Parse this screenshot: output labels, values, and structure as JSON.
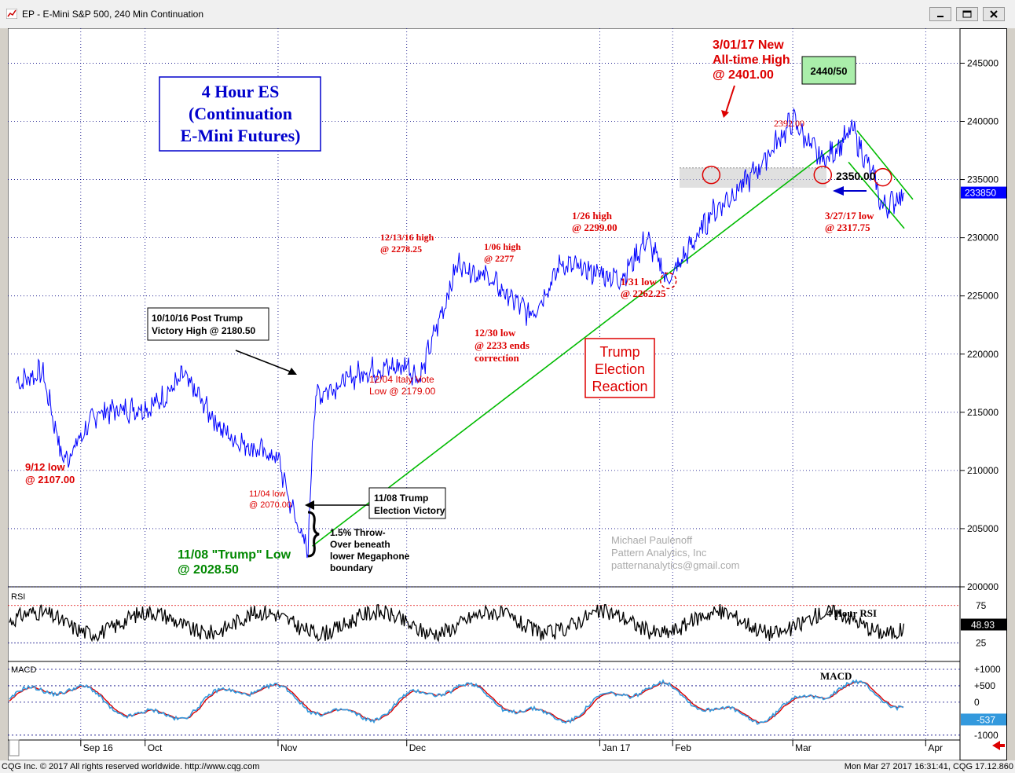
{
  "window": {
    "title": "EP - E-Mini S&P 500, 240 Min Continuation",
    "buttons": [
      "minimize",
      "restore",
      "close"
    ]
  },
  "footer": {
    "left": "CQG Inc. © 2017 All rights reserved worldwide. http://www.cqg.com",
    "right": "Mon Mar 27 2017 16:31:41, CQG 17.12.860"
  },
  "colors": {
    "price": "#0000ff",
    "annotation_red": "#dd0000",
    "trend_green": "#00bb00",
    "rsi_line": "#000000",
    "macd_blue": "#3399dd",
    "macd_red": "#dd0000",
    "grid": "#000080"
  },
  "chart_data": [
    {
      "type": "line",
      "panel": "price",
      "ylim": [
        200000,
        248000
      ],
      "y_ticks": [
        200000,
        205000,
        210000,
        215000,
        220000,
        225000,
        230000,
        235000,
        240000,
        245000
      ],
      "current_value_label": "233850",
      "x_ticks": [
        "Sep 16",
        "Oct",
        "Nov",
        "Dec",
        "Jan 17",
        "Feb",
        "Mar",
        "Apr"
      ],
      "series": [
        {
          "x": [
            "2016-09-01",
            "2016-09-07",
            "2016-09-12",
            "2016-09-20",
            "2016-10-03",
            "2016-10-10",
            "2016-10-20",
            "2016-11-01",
            "2016-11-04",
            "2016-11-08",
            "2016-11-09",
            "2016-11-10",
            "2016-11-21",
            "2016-12-01",
            "2016-12-04",
            "2016-12-13",
            "2016-12-20",
            "2016-12-30",
            "2017-01-06",
            "2017-01-20",
            "2017-01-26",
            "2017-01-31",
            "2017-02-10",
            "2017-02-20",
            "2017-03-01",
            "2017-03-08",
            "2017-03-15",
            "2017-03-20",
            "2017-03-22",
            "2017-03-27"
          ],
          "values": [
            217500,
            218500,
            210700,
            215000,
            215500,
            218050,
            213000,
            211000,
            207000,
            202850,
            212500,
            216500,
            218500,
            219000,
            217900,
            227825,
            226500,
            223300,
            227700,
            226500,
            229900,
            226225,
            232000,
            235500,
            240100,
            236500,
            239200,
            235000,
            232500,
            233850
          ]
        }
      ],
      "levels": [
        {
          "label": "2350.00",
          "value": 235000
        }
      ],
      "annotations": {
        "title_box": [
          "4 Hour ES",
          "(Continuation",
          "E-Mini Futures)"
        ],
        "target_box": "2440/50",
        "ath": [
          "3/01/17 New",
          "All-time High",
          "@ 2401.00"
        ],
        "high_2392": "2392.00",
        "low_0327": [
          "3/27/17 low",
          "@ 2317.75"
        ],
        "high_0126": [
          "1/26 high",
          "@ 2299.00"
        ],
        "low_0131": [
          "1/31 low",
          "@ 2262.25"
        ],
        "high_1213": [
          "12/13/16 high",
          "@ 2278.25"
        ],
        "high_0106": [
          "1/06 high",
          "@ 2277"
        ],
        "low_1230": [
          "12/30 low",
          "@ 2233 ends",
          "correction"
        ],
        "italy": [
          "12/04 Italy Vote",
          "Low @ 2179.00"
        ],
        "post_trump": [
          "10/10/16 Post Trump",
          "Victory High @ 2180.50"
        ],
        "election": [
          "11/08 Trump",
          "Election Victory"
        ],
        "low_0912": [
          "9/12 low",
          "@ 2107.00"
        ],
        "low_1104": [
          "11/04 low",
          "@ 2070.00"
        ],
        "trump_low": [
          "11/08 \"Trump\" Low",
          "@ 2028.50"
        ],
        "throwover": [
          "1.5% Throw-",
          "Over beneath",
          "lower Megaphone",
          "boundary"
        ],
        "reaction": [
          "Trump",
          "Election",
          "Reaction"
        ],
        "watermark": [
          "Michael Paulenoff",
          "Pattern Analytics, Inc",
          "patternanalytics@gmail.com"
        ]
      }
    },
    {
      "type": "line",
      "panel": "rsi",
      "title": "RSI",
      "label": "4 Hour RSI",
      "ylim": [
        0,
        100
      ],
      "y_ticks": [
        25,
        75
      ],
      "current_value_label": "48.93",
      "series": [
        {
          "name": "RSI",
          "values": [
            48.93
          ]
        }
      ]
    },
    {
      "type": "line",
      "panel": "macd",
      "title": "MACD",
      "label": "MACD",
      "y_ticks": [
        "+1000",
        "+500",
        "0",
        "-1000"
      ],
      "current_value_label": "-537",
      "series": [
        {
          "name": "MACD",
          "values": [
            -537
          ]
        },
        {
          "name": "Signal",
          "values": [
            -500
          ]
        }
      ]
    }
  ]
}
